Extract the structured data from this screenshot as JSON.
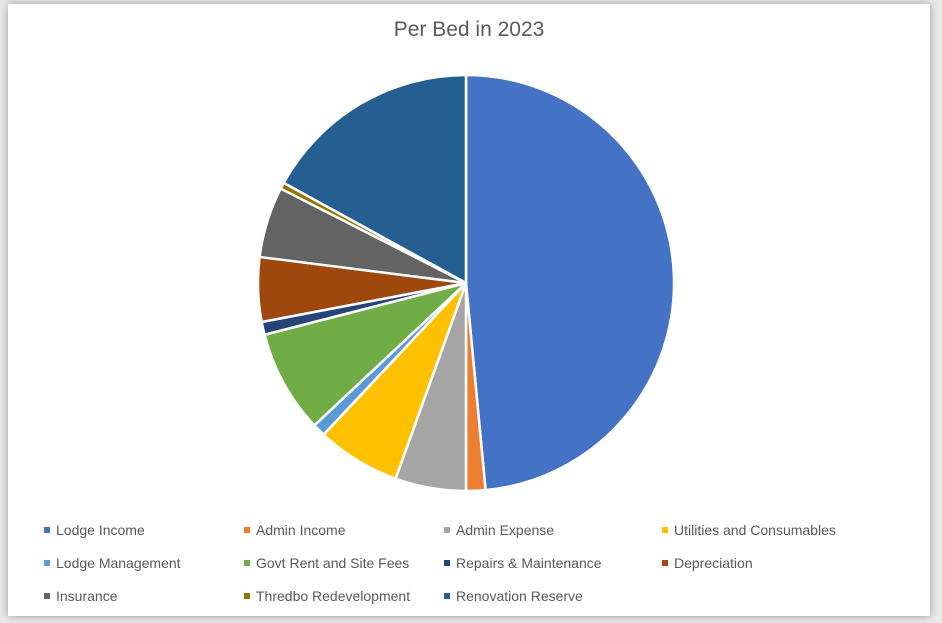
{
  "chart_data": {
    "type": "pie",
    "title": "Per Bed in 2023",
    "legend_position": "bottom",
    "start_angle_deg": 0,
    "direction": "clockwise",
    "slices": [
      {
        "label": "Lodge Income",
        "value": 48.5,
        "color": "#4472c4"
      },
      {
        "label": "Admin Income",
        "value": 1.5,
        "color": "#ed7d31"
      },
      {
        "label": "Admin Expense",
        "value": 5.5,
        "color": "#a5a5a5"
      },
      {
        "label": "Utilities and Consumables",
        "value": 6.5,
        "color": "#ffc000"
      },
      {
        "label": "Lodge Management",
        "value": 1.0,
        "color": "#5b9bd5"
      },
      {
        "label": "Govt Rent and Site Fees",
        "value": 8.0,
        "color": "#70ad47"
      },
      {
        "label": "Repairs & Maintenance",
        "value": 1.0,
        "color": "#264478"
      },
      {
        "label": "Depreciation",
        "value": 5.0,
        "color": "#9e480e"
      },
      {
        "label": "Insurance",
        "value": 5.5,
        "color": "#636363"
      },
      {
        "label": "Thredbo Redevelopment",
        "value": 0.5,
        "color": "#997300"
      },
      {
        "label": "Renovation Reserve",
        "value": 17.0,
        "color": "#255e91"
      }
    ]
  }
}
